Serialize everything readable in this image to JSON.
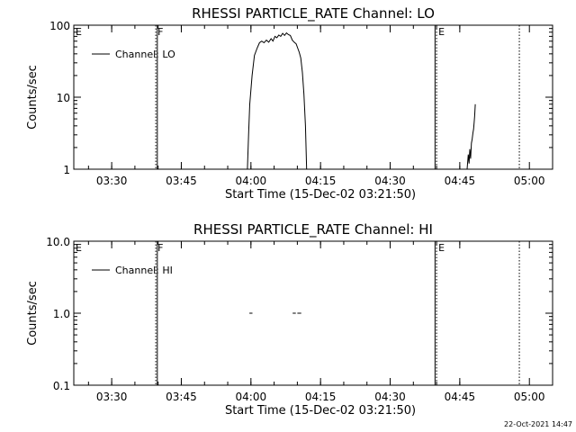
{
  "chart_data": [
    {
      "type": "line",
      "title": "RHESSI PARTICLE_RATE Channel: LO",
      "xlabel": "Start Time (15-Dec-02 03:21:50)",
      "ylabel": "Counts/sec",
      "y_scale": "log",
      "xlim": [
        "03:21:50",
        "05:05:00"
      ],
      "ylim": [
        1,
        100
      ],
      "x_ticks": [
        "03:30",
        "03:45",
        "04:00",
        "04:15",
        "04:30",
        "04:45",
        "05:00"
      ],
      "y_ticks": [
        "1",
        "10",
        "100"
      ],
      "legend": {
        "placement": "top-left",
        "label": "Channel: LO"
      },
      "regions": [
        {
          "label": "E",
          "x": "03:21:50"
        },
        {
          "label": "F",
          "x": "03:39:30"
        },
        {
          "label": "E",
          "x": "04:40:00"
        }
      ],
      "vlines": [
        {
          "x": "03:39:30",
          "style": "dotted"
        },
        {
          "x": "03:39:50",
          "style": "solid"
        },
        {
          "x": "04:39:40",
          "style": "solid"
        },
        {
          "x": "04:40:00",
          "style": "dotted"
        },
        {
          "x": "04:57:50",
          "style": "dotted"
        }
      ],
      "series": [
        {
          "segments": [
            [
              [
                "03:59:15",
                1
              ],
              [
                "03:59:30",
                3
              ],
              [
                "03:59:45",
                8
              ],
              [
                "04:00:15",
                20
              ],
              [
                "04:00:45",
                38
              ],
              [
                "04:01:20",
                48
              ],
              [
                "04:01:50",
                57
              ],
              [
                "04:02:20",
                60
              ],
              [
                "04:02:50",
                57
              ],
              [
                "04:03:20",
                62
              ],
              [
                "04:03:50",
                58
              ],
              [
                "04:04:20",
                65
              ],
              [
                "04:04:45",
                60
              ],
              [
                "04:05:10",
                70
              ],
              [
                "04:05:35",
                67
              ],
              [
                "04:06:00",
                73
              ],
              [
                "04:06:25",
                70
              ],
              [
                "04:06:50",
                77
              ],
              [
                "04:07:15",
                72
              ],
              [
                "04:07:40",
                78
              ],
              [
                "04:08:05",
                74
              ],
              [
                "04:08:30",
                72
              ],
              [
                "04:08:55",
                62
              ],
              [
                "04:09:20",
                58
              ],
              [
                "04:09:45",
                55
              ],
              [
                "04:10:05",
                48
              ],
              [
                "04:10:25",
                42
              ],
              [
                "04:10:45",
                35
              ],
              [
                "04:11:05",
                22
              ],
              [
                "04:11:25",
                11
              ],
              [
                "04:11:45",
                4
              ],
              [
                "04:12:00",
                1
              ]
            ],
            [
              [
                "04:46:35",
                1
              ],
              [
                "04:46:50",
                1.6
              ],
              [
                "04:47:00",
                1.2
              ],
              [
                "04:47:10",
                1.9
              ],
              [
                "04:47:20",
                1.4
              ],
              [
                "04:47:30",
                2.3
              ],
              [
                "04:47:40",
                2.6
              ],
              [
                "04:47:50",
                3.2
              ],
              [
                "04:47:58",
                3.6
              ],
              [
                "04:48:05",
                4.4
              ],
              [
                "04:48:12",
                5.5
              ],
              [
                "04:48:20",
                8
              ]
            ]
          ]
        }
      ]
    },
    {
      "type": "line",
      "title": "RHESSI PARTICLE_RATE Channel: HI",
      "xlabel": "Start Time (15-Dec-02 03:21:50)",
      "ylabel": "Counts/sec",
      "y_scale": "log",
      "xlim": [
        "03:21:50",
        "05:05:00"
      ],
      "ylim": [
        0.1,
        10
      ],
      "x_ticks": [
        "03:30",
        "03:45",
        "04:00",
        "04:15",
        "04:30",
        "04:45",
        "05:00"
      ],
      "y_ticks": [
        "0.1",
        "1.0",
        "10.0"
      ],
      "legend": {
        "placement": "top-left",
        "label": "Channel: HI"
      },
      "regions": [
        {
          "label": "E",
          "x": "03:21:50"
        },
        {
          "label": "F",
          "x": "03:39:30"
        },
        {
          "label": "E",
          "x": "04:40:00"
        }
      ],
      "vlines": [
        {
          "x": "03:39:30",
          "style": "dotted"
        },
        {
          "x": "03:39:50",
          "style": "solid"
        },
        {
          "x": "04:39:40",
          "style": "solid"
        },
        {
          "x": "04:40:00",
          "style": "dotted"
        },
        {
          "x": "04:57:50",
          "style": "dotted"
        }
      ],
      "series": [
        {
          "segments": [
            [
              [
                "03:59:40",
                1
              ],
              [
                "04:00:20",
                1
              ]
            ],
            [
              [
                "04:09:00",
                1
              ],
              [
                "04:09:40",
                1
              ]
            ],
            [
              [
                "04:10:00",
                1
              ],
              [
                "04:10:50",
                1
              ]
            ]
          ]
        }
      ]
    }
  ],
  "footer": {
    "timestamp": "22-Oct-2021 14:47"
  }
}
